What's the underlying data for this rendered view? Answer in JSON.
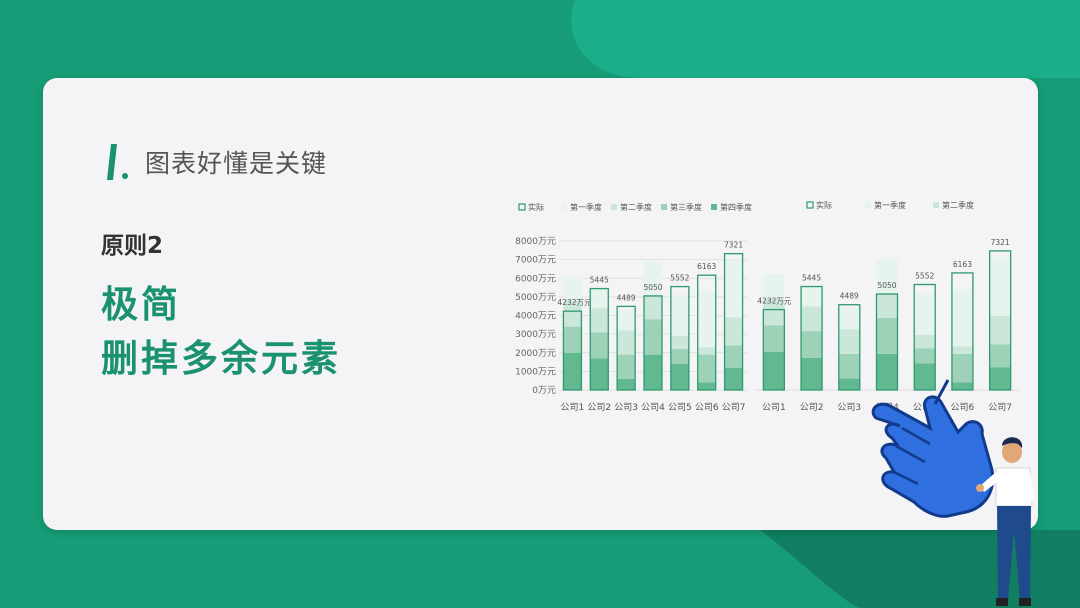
{
  "heading": {
    "title": "图表好懂是关键"
  },
  "principle": "原则2",
  "slogan": {
    "line1": "极简",
    "line2": "删掉多余元素"
  },
  "colors": {
    "background": "#169c76",
    "card": "#f4f3f5",
    "accent": "#1a9270",
    "actual_stroke": "#2f9a6f",
    "q1": "#e7f3ed",
    "q2": "#cbe7da",
    "q3": "#9dd2b9",
    "q4": "#62b991"
  },
  "icons": {
    "heading_mark": "slash-mark-icon",
    "hand": "pointing-hand-icon",
    "person": "presenter-person-icon"
  },
  "chart_data": [
    {
      "type": "bar",
      "categories": [
        "公司1",
        "公司2",
        "公司3",
        "公司4",
        "公司5",
        "公司6",
        "公司7"
      ],
      "series": [
        {
          "name": "实际",
          "values": [
            4232,
            5445,
            4489,
            5050,
            5552,
            6163,
            7321
          ]
        },
        {
          "name": "第一季度",
          "values": [
            1300,
            1100,
            1100,
            1800,
            2200,
            3000,
            3100
          ]
        },
        {
          "name": "第二季度",
          "values": [
            1400,
            1300,
            1300,
            1300,
            700,
            400,
            1500
          ]
        },
        {
          "name": "第三季度",
          "values": [
            1400,
            1400,
            1300,
            1900,
            800,
            1500,
            1200
          ]
        },
        {
          "name": "第四季度",
          "values": [
            2000,
            1700,
            600,
            1900,
            1400,
            400,
            1200
          ]
        }
      ],
      "data_labels": [
        "4232万元",
        "5445",
        "4489",
        "5050",
        "5552",
        "6163",
        "7321"
      ],
      "y_ticks": [
        "0万元",
        "1000万元",
        "2000万元",
        "3000万元",
        "4000万元",
        "5000万元",
        "6000万元",
        "7000万元",
        "8000万元"
      ],
      "ylim": [
        0,
        8000
      ],
      "grid": true,
      "legend": "top"
    },
    {
      "type": "bar",
      "categories": [
        "公司1",
        "公司2",
        "公司3",
        "公司4",
        "公司5",
        "公司6",
        "公司7"
      ],
      "series": [
        {
          "name": "实际",
          "values": [
            4232,
            5445,
            4489,
            5050,
            5552,
            6163,
            7321
          ]
        },
        {
          "name": "第一季度",
          "values": [
            1300,
            1100,
            1100,
            1800,
            2200,
            3000,
            3100
          ]
        },
        {
          "name": "第二季度",
          "values": [
            1400,
            1300,
            1300,
            1300,
            700,
            400,
            1500
          ]
        },
        {
          "name": "第三季度",
          "values": [
            1400,
            1400,
            1300,
            1900,
            800,
            1500,
            1200
          ]
        },
        {
          "name": "第四季度",
          "values": [
            2000,
            1700,
            600,
            1900,
            1400,
            400,
            1200
          ]
        }
      ],
      "data_labels": [
        "4232万元",
        "5445",
        "4489",
        "5050",
        "5552",
        "6163",
        "7321"
      ],
      "legend_entries": [
        "实际",
        "第一季度",
        "第二季度"
      ],
      "ylim": [
        0,
        8000
      ],
      "grid": false,
      "legend": "top"
    }
  ]
}
